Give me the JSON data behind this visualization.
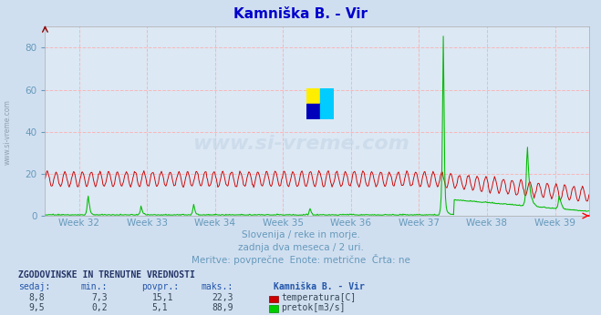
{
  "title": "Kamniška B. - Vir",
  "title_color": "#0000cc",
  "bg_color": "#d0dff0",
  "plot_bg_color": "#dce8f4",
  "grid_color": "#ffaaaa",
  "xlabel_color": "#6699bb",
  "ylabel_color": "#6699bb",
  "week_labels": [
    "Week 32",
    "Week 33",
    "Week 34",
    "Week 35",
    "Week 36",
    "Week 37",
    "Week 38",
    "Week 39"
  ],
  "ylim": [
    0,
    90
  ],
  "yticks": [
    0,
    20,
    40,
    60,
    80
  ],
  "temp_color": "#cc0000",
  "flow_color": "#00bb00",
  "n_points": 744,
  "subtitle1": "Slovenija / reke in morje.",
  "subtitle2": "zadnja dva meseca / 2 uri.",
  "subtitle3": "Meritve: povprečne  Enote: metrične  Črta: ne",
  "table_header": "ZGODOVINSKE IN TRENUTNE VREDNOSTI",
  "col_headers": [
    "sedaj:",
    "min.:",
    "povpr.:",
    "maks.:",
    "Kamniška B. - Vir"
  ],
  "row1": [
    "8,8",
    "7,3",
    "15,1",
    "22,3",
    "temperatura[C]"
  ],
  "row2": [
    "9,5",
    "0,2",
    "5,1",
    "88,9",
    "pretok[m3/s]"
  ],
  "watermark": "www.si-vreme.com",
  "watermark_color": "#bbccdd",
  "side_text": "www.si-vreme.com",
  "logo_colors": [
    "#ffee00",
    "#00ccff",
    "#0000bb",
    "#00ccff"
  ]
}
